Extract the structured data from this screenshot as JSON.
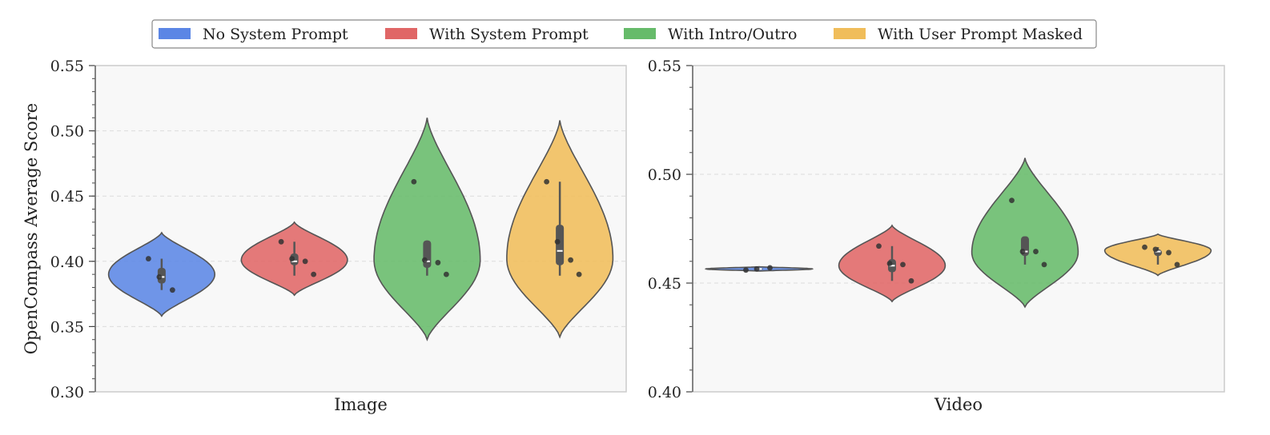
{
  "legend": {
    "placement": "top-center",
    "items": [
      {
        "label": "No System Prompt",
        "color": "#5b86e5"
      },
      {
        "label": "With System Prompt",
        "color": "#e06666"
      },
      {
        "label": "With Intro/Outro",
        "color": "#66bb6a"
      },
      {
        "label": "With User Prompt Masked",
        "color": "#f0bd5a"
      }
    ]
  },
  "chart_data": [
    {
      "type": "violin",
      "xlabel": "Image",
      "ylabel": "OpenCompass Average Score",
      "ylim": [
        0.3,
        0.55
      ],
      "yticks": [
        "0.30",
        "0.35",
        "0.40",
        "0.45",
        "0.50",
        "0.55"
      ],
      "grid": true,
      "series": [
        {
          "name": "No System Prompt",
          "points": [
            0.402,
            0.388,
            0.378
          ],
          "median": 0.388,
          "q1": 0.383,
          "q3": 0.395,
          "whisker": [
            0.378,
            0.402
          ],
          "range": [
            0.358,
            0.422
          ],
          "peak": 0.39
        },
        {
          "name": "With System Prompt",
          "points": [
            0.415,
            0.402,
            0.4,
            0.39
          ],
          "median": 0.4,
          "q1": 0.397,
          "q3": 0.406,
          "whisker": [
            0.389,
            0.415
          ],
          "range": [
            0.374,
            0.43
          ],
          "peak": 0.401
        },
        {
          "name": "With Intro/Outro",
          "points": [
            0.461,
            0.401,
            0.399,
            0.39
          ],
          "median": 0.4,
          "q1": 0.395,
          "q3": 0.416,
          "whisker": [
            0.389,
            0.416
          ],
          "range": [
            0.34,
            0.51
          ],
          "peak": 0.401
        },
        {
          "name": "With User Prompt Masked",
          "points": [
            0.461,
            0.415,
            0.401,
            0.39
          ],
          "median": 0.408,
          "q1": 0.397,
          "q3": 0.428,
          "whisker": [
            0.389,
            0.461
          ],
          "range": [
            0.342,
            0.508
          ],
          "peak": 0.402
        }
      ]
    },
    {
      "type": "violin",
      "xlabel": "Video",
      "ylabel": "",
      "ylim": [
        0.4,
        0.55
      ],
      "yticks": [
        "0.40",
        "0.45",
        "0.50",
        "0.55"
      ],
      "grid": true,
      "series": [
        {
          "name": "No System Prompt",
          "points": [
            0.456,
            0.4565,
            0.457
          ],
          "median": 0.4565,
          "q1": 0.4563,
          "q3": 0.4568,
          "whisker": [
            0.456,
            0.457
          ],
          "range": [
            0.4555,
            0.4575
          ],
          "peak": 0.4565
        },
        {
          "name": "With System Prompt",
          "points": [
            0.467,
            0.459,
            0.4585,
            0.451
          ],
          "median": 0.458,
          "q1": 0.455,
          "q3": 0.461,
          "whisker": [
            0.451,
            0.467
          ],
          "range": [
            0.4415,
            0.4765
          ],
          "peak": 0.458
        },
        {
          "name": "With Intro/Outro",
          "points": [
            0.488,
            0.4645,
            0.4645,
            0.4585
          ],
          "median": 0.4645,
          "q1": 0.4625,
          "q3": 0.4715,
          "whisker": [
            0.4585,
            0.4715
          ],
          "range": [
            0.439,
            0.5075
          ],
          "peak": 0.464
        },
        {
          "name": "With User Prompt Masked",
          "points": [
            0.4665,
            0.4655,
            0.464,
            0.4585
          ],
          "median": 0.4645,
          "q1": 0.4625,
          "q3": 0.4655,
          "whisker": [
            0.4585,
            0.4665
          ],
          "range": [
            0.4535,
            0.4725
          ],
          "peak": 0.465
        }
      ]
    }
  ]
}
